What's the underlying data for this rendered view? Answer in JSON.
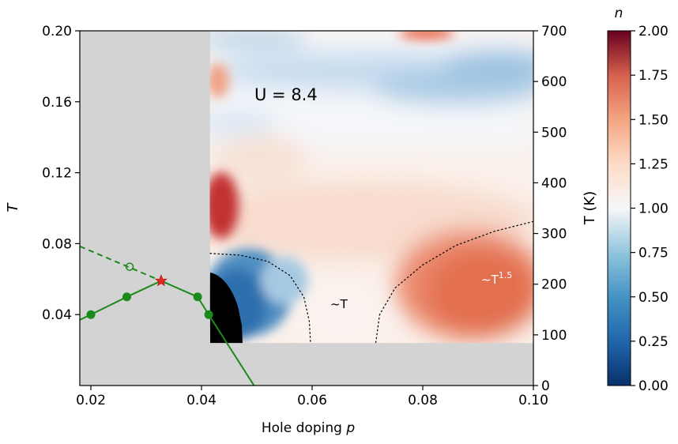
{
  "chart_data": {
    "type": "heatmap",
    "title": "",
    "xlabel": "Hole doping",
    "xlabel_var": "p",
    "ylabel": "T",
    "ylabel_right": "T (K)",
    "colorbar_label": "n",
    "annotation_U": "U = 8.4",
    "annotation_T": "~T",
    "annotation_T15_base": "~T",
    "annotation_T15_exp": "1.5",
    "xlim": [
      0.018,
      0.1
    ],
    "ylim": [
      0.0,
      0.2
    ],
    "ylim_right_K": [
      0,
      700
    ],
    "colorbar_range": [
      0.0,
      2.0
    ],
    "colormap": "RdBu_r",
    "grey_region_color": "#d3d3d3",
    "line_color": "#1a8a1a",
    "star_color": "#e8281e",
    "x_ticks": [
      "0.02",
      "0.04",
      "0.06",
      "0.08",
      "0.10"
    ],
    "y_ticks": [
      "0.04",
      "0.08",
      "0.12",
      "0.16",
      "0.20"
    ],
    "y_ticks_right": [
      "0",
      "100",
      "200",
      "300",
      "400",
      "500",
      "600",
      "700"
    ],
    "colorbar_ticks": [
      "0.00",
      "0.25",
      "0.50",
      "0.75",
      "1.00",
      "1.25",
      "1.50",
      "1.75",
      "2.00"
    ],
    "heatmap_extent": {
      "x": [
        0.0415,
        0.1
      ],
      "y": [
        0.024,
        0.2
      ]
    },
    "phase_line_solid": [
      {
        "x": 0.018,
        "y": 0.037
      },
      {
        "x": 0.02,
        "y": 0.04
      },
      {
        "x": 0.0265,
        "y": 0.05
      },
      {
        "x": 0.0327,
        "y": 0.059
      },
      {
        "x": 0.0393,
        "y": 0.05
      },
      {
        "x": 0.0413,
        "y": 0.04
      },
      {
        "x": 0.0495,
        "y": 0.0
      }
    ],
    "phase_points_filled": [
      {
        "x": 0.02,
        "y": 0.04
      },
      {
        "x": 0.0265,
        "y": 0.05
      },
      {
        "x": 0.0393,
        "y": 0.05
      },
      {
        "x": 0.0413,
        "y": 0.04
      }
    ],
    "phase_line_dashed": [
      {
        "x": 0.018,
        "y": 0.0785
      },
      {
        "x": 0.0327,
        "y": 0.059
      }
    ],
    "phase_point_open": {
      "x": 0.027,
      "y": 0.067
    },
    "critical_point_star": {
      "x": 0.0327,
      "y": 0.059
    },
    "dotted_contour_left": [
      {
        "x": 0.0415,
        "y": 0.0745
      },
      {
        "x": 0.047,
        "y": 0.0735
      },
      {
        "x": 0.052,
        "y": 0.07
      },
      {
        "x": 0.056,
        "y": 0.062
      },
      {
        "x": 0.0585,
        "y": 0.05
      },
      {
        "x": 0.0595,
        "y": 0.036
      },
      {
        "x": 0.0597,
        "y": 0.024
      }
    ],
    "dotted_contour_right": [
      {
        "x": 0.0715,
        "y": 0.024
      },
      {
        "x": 0.0722,
        "y": 0.04
      },
      {
        "x": 0.075,
        "y": 0.055
      },
      {
        "x": 0.08,
        "y": 0.068
      },
      {
        "x": 0.086,
        "y": 0.079
      },
      {
        "x": 0.093,
        "y": 0.087
      },
      {
        "x": 0.1,
        "y": 0.0925
      }
    ]
  }
}
